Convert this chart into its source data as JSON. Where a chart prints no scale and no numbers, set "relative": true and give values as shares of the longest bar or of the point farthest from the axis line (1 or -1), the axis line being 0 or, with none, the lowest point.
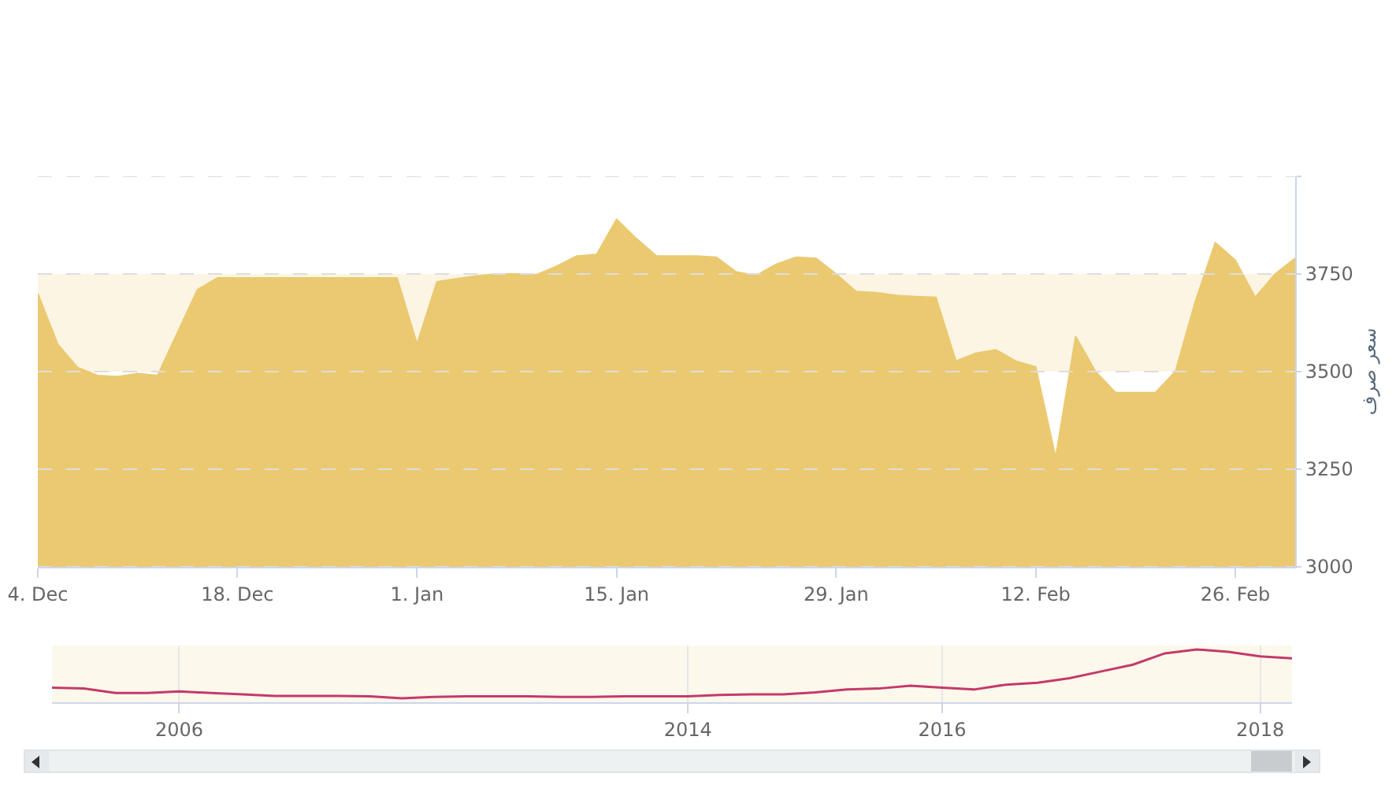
{
  "chart_data": [
    {
      "type": "area",
      "ylabel": "سعر صرف",
      "categories": [
        "4. Dec",
        null,
        null,
        null,
        null,
        null,
        null,
        null,
        null,
        null,
        "18. Dec",
        null,
        null,
        null,
        null,
        null,
        null,
        null,
        null,
        "1. Jan",
        null,
        null,
        null,
        null,
        null,
        null,
        null,
        null,
        null,
        "15. Jan",
        null,
        null,
        null,
        null,
        null,
        null,
        null,
        null,
        null,
        null,
        "29. Jan",
        null,
        null,
        null,
        null,
        null,
        null,
        null,
        null,
        null,
        "12. Feb",
        null,
        null,
        null,
        null,
        null,
        null,
        null,
        null,
        null,
        "26. Feb",
        null,
        null,
        null
      ],
      "series": [
        {
          "color": "#ebc970",
          "values": [
            3700,
            3570,
            3510,
            3490,
            3487,
            3495,
            3490,
            3600,
            3710,
            3740,
            3740,
            3740,
            3740,
            3740,
            3740,
            3740,
            3740,
            3740,
            3740,
            3571,
            3730,
            3738,
            3745,
            3750,
            3750,
            3748,
            3770,
            3796,
            3800,
            3890,
            3840,
            3796,
            3796,
            3796,
            3793,
            3755,
            3746,
            3775,
            3793,
            3790,
            3750,
            3705,
            3702,
            3695,
            3692,
            3690,
            3527,
            3547,
            3556,
            3527,
            3512,
            3280,
            3590,
            3500,
            3446,
            3446,
            3446,
            3500,
            3680,
            3830,
            3785,
            3690,
            3750,
            3790
          ]
        }
      ],
      "ylim": [
        3000,
        4000
      ],
      "yticks": [
        3000,
        3250,
        3500,
        3750,
        {
          "value": 4000,
          "label": null
        }
      ],
      "grid": "y",
      "bands": [
        {
          "axis": "y",
          "from": 3500,
          "to": 3750,
          "color": "#fcf5e4"
        }
      ]
    },
    {
      "type": "line",
      "relative": true,
      "tick_labels": "x",
      "grid": "x",
      "categories": [
        null,
        null,
        null,
        null,
        "2006",
        null,
        null,
        null,
        null,
        null,
        null,
        null,
        null,
        null,
        null,
        null,
        null,
        null,
        null,
        null,
        "2014",
        null,
        null,
        null,
        null,
        null,
        null,
        null,
        "2016",
        null,
        null,
        null,
        null,
        null,
        null,
        null,
        null,
        null,
        "2018",
        null
      ],
      "series": [
        {
          "color": "#c43a6a",
          "values": [
            0.22,
            0.2,
            0.11,
            0.11,
            0.14,
            0.11,
            0.08,
            0.05,
            0.05,
            0.05,
            0.04,
            0,
            0.03,
            0.04,
            0.04,
            0.04,
            0.03,
            0.03,
            0.04,
            0.04,
            0.04,
            0.07,
            0.08,
            0.08,
            0.12,
            0.18,
            0.2,
            0.26,
            0.22,
            0.18,
            0.28,
            0.32,
            0.41,
            0.55,
            0.69,
            0.92,
            1,
            0.95,
            0.86,
            0.82
          ]
        }
      ]
    }
  ]
}
